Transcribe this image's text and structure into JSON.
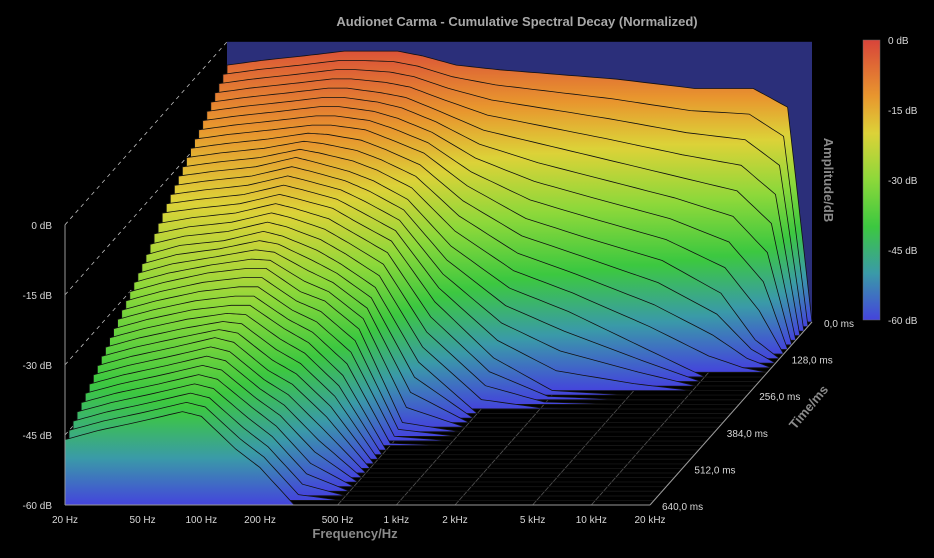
{
  "chart_data": {
    "type": "waterfall-3d",
    "title": "Audionet Carma - Cumulative Spectral Decay (Normalized)",
    "xlabel": "Frequency/Hz",
    "ylabel": "Amplitude/dB",
    "zlabel": "Time/ms",
    "x_scale": "log",
    "xlim": [
      20,
      20000
    ],
    "ylim": [
      -60,
      0
    ],
    "zlim": [
      0,
      640
    ],
    "x_ticks": [
      "20 Hz",
      "50 Hz",
      "100 Hz",
      "200 Hz",
      "500 Hz",
      "1 kHz",
      "2 kHz",
      "5 kHz",
      "10 kHz",
      "20 kHz"
    ],
    "x_tick_values": [
      20,
      50,
      100,
      200,
      500,
      1000,
      2000,
      5000,
      10000,
      20000
    ],
    "y_ticks": [
      "0 dB",
      "-15 dB",
      "-30 dB",
      "-45 dB",
      "-60 dB"
    ],
    "y_tick_values": [
      0,
      -15,
      -30,
      -45,
      -60
    ],
    "z_ticks": [
      "0,0 ms",
      "128,0 ms",
      "256,0 ms",
      "384,0 ms",
      "512,0 ms",
      "640,0 ms"
    ],
    "z_tick_values": [
      0,
      128,
      256,
      384,
      512,
      640
    ],
    "colorbar": {
      "labels": [
        "0 dB",
        "-15 dB",
        "-30 dB",
        "-45 dB",
        "-60 dB"
      ],
      "stops": [
        {
          "db": 0,
          "color": "#d8443a"
        },
        {
          "db": -12,
          "color": "#e8962e"
        },
        {
          "db": -20,
          "color": "#dcd238"
        },
        {
          "db": -30,
          "color": "#8cd83a"
        },
        {
          "db": -40,
          "color": "#3cc840"
        },
        {
          "db": -50,
          "color": "#3a9aa8"
        },
        {
          "db": -60,
          "color": "#4444dc"
        }
      ]
    },
    "back_wall_color": "#2b2f7a",
    "frequencies": [
      20,
      30,
      50,
      80,
      100,
      150,
      200,
      300,
      500,
      1000,
      2000,
      5000,
      10000,
      15000,
      20000
    ],
    "slices": [
      {
        "time_ms": 0,
        "db": [
          -5,
          -4,
          -3,
          -2,
          -2,
          -2,
          -3,
          -5,
          -6,
          -7,
          -8,
          -10,
          -10,
          -14,
          -60
        ]
      },
      {
        "time_ms": 64,
        "db": [
          -9,
          -8,
          -7,
          -6,
          -6,
          -7,
          -8,
          -11,
          -15,
          -18,
          -21,
          -25,
          -28,
          -35,
          -60
        ]
      },
      {
        "time_ms": 128,
        "db": [
          -13,
          -12,
          -11,
          -10,
          -10,
          -11,
          -13,
          -16,
          -23,
          -30,
          -34,
          -39,
          -46,
          -56,
          -60
        ]
      },
      {
        "time_ms": 192,
        "db": [
          -17,
          -16,
          -15,
          -13,
          -14,
          -16,
          -18,
          -22,
          -32,
          -41,
          -46,
          -54,
          -60,
          -60,
          -60
        ]
      },
      {
        "time_ms": 256,
        "db": [
          -21,
          -20,
          -19,
          -17,
          -18,
          -20,
          -23,
          -27,
          -40,
          -52,
          -59,
          -60,
          -60,
          -60,
          -60
        ]
      },
      {
        "time_ms": 320,
        "db": [
          -26,
          -24,
          -23,
          -21,
          -22,
          -25,
          -28,
          -33,
          -49,
          -60,
          -60,
          -60,
          -60,
          -60,
          -60
        ]
      },
      {
        "time_ms": 384,
        "db": [
          -30,
          -28,
          -26,
          -25,
          -25,
          -30,
          -32,
          -38,
          -58,
          -60,
          -60,
          -60,
          -60,
          -60,
          -60
        ]
      },
      {
        "time_ms": 448,
        "db": [
          -34,
          -32,
          -30,
          -29,
          -29,
          -34,
          -37,
          -44,
          -60,
          -60,
          -60,
          -60,
          -60,
          -60,
          -60
        ]
      },
      {
        "time_ms": 512,
        "db": [
          -38,
          -36,
          -34,
          -32,
          -33,
          -39,
          -42,
          -49,
          -60,
          -60,
          -60,
          -60,
          -60,
          -60,
          -60
        ]
      },
      {
        "time_ms": 576,
        "db": [
          -42,
          -40,
          -38,
          -36,
          -37,
          -43,
          -47,
          -55,
          -60,
          -60,
          -60,
          -60,
          -60,
          -60,
          -60
        ]
      },
      {
        "time_ms": 640,
        "db": [
          -46,
          -44,
          -42,
          -40,
          -41,
          -48,
          -52,
          -60,
          -60,
          -60,
          -60,
          -60,
          -60,
          -60,
          -60
        ]
      }
    ]
  }
}
